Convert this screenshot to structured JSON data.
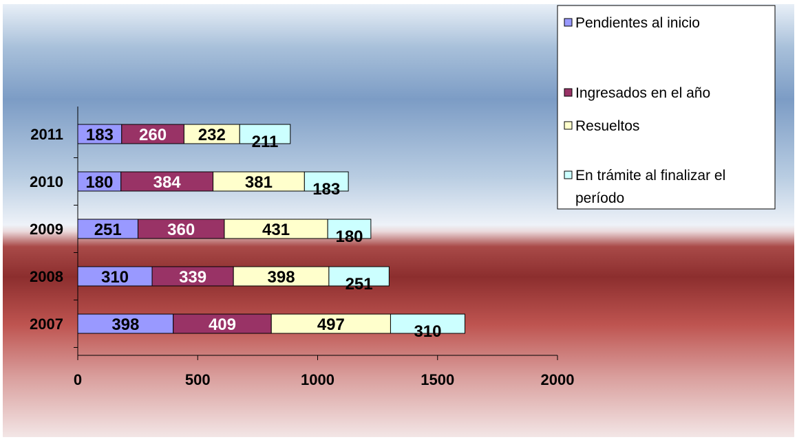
{
  "chart_data": {
    "type": "bar",
    "orientation": "horizontal",
    "stacked": true,
    "categories": [
      "2011",
      "2010",
      "2009",
      "2008",
      "2007"
    ],
    "series": [
      {
        "name": "Pendientes al inicio",
        "values": [
          183,
          180,
          251,
          310,
          398
        ],
        "color": "#9999ff",
        "label_color": "#000000"
      },
      {
        "name": "Ingresados en el año",
        "values": [
          260,
          384,
          360,
          339,
          409
        ],
        "color": "#993366",
        "label_color": "#ffffff"
      },
      {
        "name": "Resueltos",
        "values": [
          232,
          381,
          431,
          398,
          497
        ],
        "color": "#ffffcc",
        "label_color": "#000000"
      },
      {
        "name": "En trámite al finalizar el período",
        "legend_lines": [
          "En trámite al finalizar el",
          "período"
        ],
        "values": [
          211,
          183,
          180,
          251,
          310
        ],
        "color": "#ccffff",
        "label_color": "#000000"
      }
    ],
    "xlim": [
      0,
      2000
    ],
    "xticks": [
      "0",
      "500",
      "1000",
      "1500",
      "2000"
    ],
    "title": "",
    "xlabel": "",
    "ylabel": "",
    "grid": false,
    "legend_position": "top-right"
  }
}
